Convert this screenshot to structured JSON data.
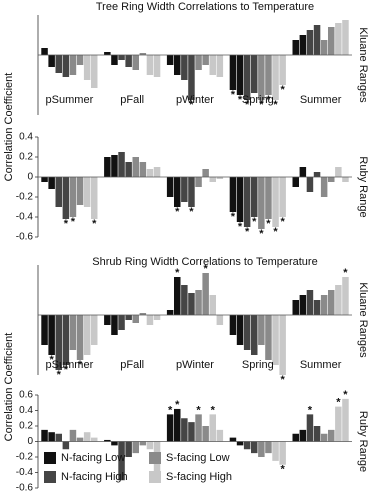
{
  "chart_data": [
    {
      "type": "bar",
      "title": "Tree Ring Width Correlations to Temperature",
      "ylabel": "Correlation Coefficient",
      "panel_label": "Kluane Ranges",
      "categories": [
        "pSummer",
        null,
        "pFall",
        null,
        "pWinter",
        null,
        "Spring",
        null,
        "Summer",
        null
      ],
      "ylim": [
        -0.6,
        0.4
      ],
      "series": [
        {
          "color": "#111111",
          "values": [
            0.07,
            -0.12,
            0.03,
            -0.1,
            -0.1,
            -0.2,
            -0.35,
            -0.4,
            0.15,
            0.2
          ],
          "markers": [
            null,
            null,
            null,
            null,
            null,
            null,
            "*",
            "*",
            null,
            null
          ]
        },
        {
          "color": "#454545",
          "values": [
            -0.18,
            -0.22,
            -0.05,
            -0.12,
            -0.25,
            -0.45,
            -0.45,
            -0.38,
            0.25,
            0.3
          ],
          "markers": [
            null,
            null,
            null,
            null,
            null,
            "*",
            "*",
            null,
            null,
            null
          ]
        },
        {
          "color": "#8a8a8a",
          "values": [
            -0.2,
            -0.1,
            -0.15,
            0.02,
            -0.15,
            -0.1,
            -0.45,
            -0.4,
            0.15,
            0.28
          ],
          "markers": [
            null,
            null,
            null,
            null,
            null,
            null,
            "*",
            "*",
            null,
            null
          ]
        },
        {
          "color": "#c8c8c8",
          "values": [
            -0.25,
            -0.33,
            -0.2,
            -0.22,
            -0.2,
            -0.22,
            -0.45,
            -0.3,
            0.32,
            0.35
          ],
          "markers": [
            null,
            null,
            null,
            null,
            null,
            null,
            "*",
            "*",
            null,
            null
          ]
        }
      ]
    },
    {
      "type": "bar",
      "panel_label": "Ruby Range",
      "ylim": [
        -0.6,
        0.4
      ],
      "yticks": [
        0.4,
        0.2,
        0,
        -0.2,
        -0.4,
        -0.6
      ],
      "series": [
        {
          "color": "#111111",
          "values": [
            -0.05,
            -0.12,
            0.2,
            0.22,
            -0.2,
            -0.3,
            -0.35,
            -0.45,
            -0.1,
            0.1
          ],
          "markers": [
            null,
            null,
            null,
            null,
            null,
            "*",
            "*",
            "*",
            null,
            null
          ]
        },
        {
          "color": "#454545",
          "values": [
            -0.3,
            -0.42,
            0.25,
            0.15,
            -0.25,
            -0.3,
            -0.5,
            -0.4,
            -0.15,
            0.05
          ],
          "markers": [
            null,
            "*",
            null,
            null,
            null,
            "*",
            "*",
            "*",
            null,
            null
          ]
        },
        {
          "color": "#8a8a8a",
          "values": [
            -0.4,
            -0.28,
            0.2,
            0.15,
            -0.1,
            0.08,
            -0.52,
            -0.42,
            -0.2,
            -0.05
          ],
          "markers": [
            "*",
            null,
            null,
            null,
            null,
            null,
            "*",
            "*",
            null,
            null
          ]
        },
        {
          "color": "#c8c8c8",
          "values": [
            -0.3,
            -0.42,
            0.08,
            0.1,
            -0.05,
            -0.02,
            -0.5,
            -0.4,
            0.1,
            -0.05
          ],
          "markers": [
            null,
            "*",
            null,
            null,
            null,
            null,
            "*",
            "*",
            null,
            null
          ]
        }
      ]
    },
    {
      "type": "bar",
      "title": "Shrub Ring Width Correlations to Temperature",
      "ylabel": "Correlation Coefficient",
      "panel_label": "Kluane Ranges",
      "categories": [
        "pSummer",
        null,
        "pFall",
        null,
        "pWinter",
        null,
        "Spring",
        null,
        "Summer",
        null
      ],
      "ylim": [
        -0.6,
        0.5
      ],
      "series": [
        {
          "color": "#111111",
          "values": [
            -0.3,
            -0.4,
            -0.1,
            -0.2,
            0.05,
            0.38,
            -0.2,
            -0.3,
            0.15,
            0.2
          ],
          "markers": [
            null,
            "*",
            null,
            null,
            null,
            "*",
            null,
            null,
            null,
            null
          ]
        },
        {
          "color": "#454545",
          "values": [
            -0.55,
            -0.5,
            -0.15,
            -0.05,
            0.3,
            0.22,
            -0.35,
            -0.4,
            0.25,
            0.15
          ],
          "markers": [
            "*",
            "*",
            null,
            null,
            null,
            null,
            null,
            null,
            null,
            null
          ]
        },
        {
          "color": "#8a8a8a",
          "values": [
            -0.35,
            -0.45,
            -0.08,
            0.02,
            0.25,
            0.42,
            -0.3,
            -0.45,
            0.2,
            0.25
          ],
          "markers": [
            null,
            "*",
            null,
            null,
            null,
            "*",
            null,
            null,
            null,
            null
          ]
        },
        {
          "color": "#c8c8c8",
          "values": [
            -0.4,
            -0.3,
            -0.1,
            -0.05,
            0.2,
            -0.1,
            -0.5,
            -0.6,
            0.3,
            0.38
          ],
          "markers": [
            null,
            null,
            null,
            null,
            null,
            null,
            null,
            "*",
            null,
            "*"
          ]
        }
      ]
    },
    {
      "type": "bar",
      "panel_label": "Ruby Range",
      "ylim": [
        -0.6,
        0.6
      ],
      "yticks": [
        0.6,
        0.4,
        0.2,
        0,
        -0.2,
        -0.4,
        -0.6
      ],
      "legend": "lower-left",
      "series": [
        {
          "name": "N-facing Low",
          "color": "#111111",
          "values": [
            0.15,
            0.12,
            0.02,
            -0.05,
            0.35,
            0.42,
            0.05,
            -0.05,
            0.1,
            0.15
          ],
          "markers": [
            null,
            null,
            null,
            null,
            "*",
            "*",
            null,
            null,
            null,
            null
          ]
        },
        {
          "name": "N-facing High",
          "color": "#454545",
          "values": [
            0.1,
            -0.1,
            -0.5,
            -0.2,
            0.3,
            0.25,
            -0.1,
            -0.15,
            0.35,
            0.2
          ],
          "markers": [
            null,
            null,
            null,
            null,
            null,
            null,
            null,
            null,
            "*",
            null
          ]
        },
        {
          "name": "S-facing Low",
          "color": "#8a8a8a",
          "values": [
            0.15,
            0.05,
            -0.15,
            -0.05,
            0.35,
            0.2,
            -0.2,
            -0.15,
            0.1,
            0.15
          ],
          "markers": [
            null,
            null,
            null,
            null,
            "*",
            null,
            null,
            null,
            null,
            null
          ]
        },
        {
          "name": "S-facing High",
          "color": "#c8c8c8",
          "values": [
            0.12,
            0.05,
            -0.1,
            -0.4,
            0.35,
            0.15,
            -0.25,
            -0.3,
            0.45,
            0.55
          ],
          "markers": [
            null,
            null,
            null,
            "*",
            "*",
            null,
            null,
            "*",
            "*",
            "*"
          ]
        }
      ]
    }
  ]
}
